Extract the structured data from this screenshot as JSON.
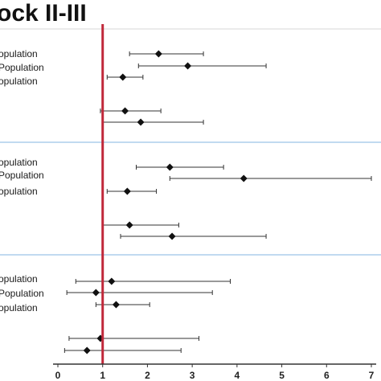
{
  "chart_data": {
    "type": "forest",
    "title": "ock II-III",
    "xlim": [
      0,
      7
    ],
    "ticks": [
      0,
      1,
      2,
      3,
      4,
      5,
      6,
      7
    ],
    "reference_x": 1,
    "colors": {
      "reference": "#c0283a",
      "separator": "#9cc3e6",
      "marker": "#111111",
      "whisker": "#333333",
      "axis": "#333333"
    },
    "panels": [
      {
        "rows": [
          {
            "label": "opulation",
            "est": 2.25,
            "low": 1.6,
            "high": 3.25
          },
          {
            "label": "Population",
            "est": 2.9,
            "low": 1.8,
            "high": 4.65
          },
          {
            "label": "opulation",
            "est": 1.45,
            "low": 1.1,
            "high": 1.9
          },
          {
            "label": "",
            "est": 1.5,
            "low": 0.95,
            "high": 2.3
          },
          {
            "label": "",
            "est": 1.85,
            "low": 1.0,
            "high": 3.25
          }
        ]
      },
      {
        "rows": [
          {
            "label": "opulation",
            "est": 2.5,
            "low": 1.75,
            "high": 3.7
          },
          {
            "label": "Population",
            "est": 4.15,
            "low": 2.5,
            "high": 7.0
          },
          {
            "label": "opulation",
            "est": 1.55,
            "low": 1.1,
            "high": 2.2
          },
          {
            "label": "",
            "est": 1.6,
            "low": 1.0,
            "high": 2.7
          },
          {
            "label": "",
            "est": 2.55,
            "low": 1.4,
            "high": 4.65
          }
        ]
      },
      {
        "rows": [
          {
            "label": "opulation",
            "est": 1.2,
            "low": 0.4,
            "high": 3.85
          },
          {
            "label": "Population",
            "est": 0.85,
            "low": 0.2,
            "high": 3.45
          },
          {
            "label": "opulation",
            "est": 1.3,
            "low": 0.85,
            "high": 2.05
          },
          {
            "label": "",
            "est": 0.95,
            "low": 0.25,
            "high": 3.15
          },
          {
            "label": "",
            "est": 0.65,
            "low": 0.15,
            "high": 2.75
          }
        ]
      }
    ]
  }
}
